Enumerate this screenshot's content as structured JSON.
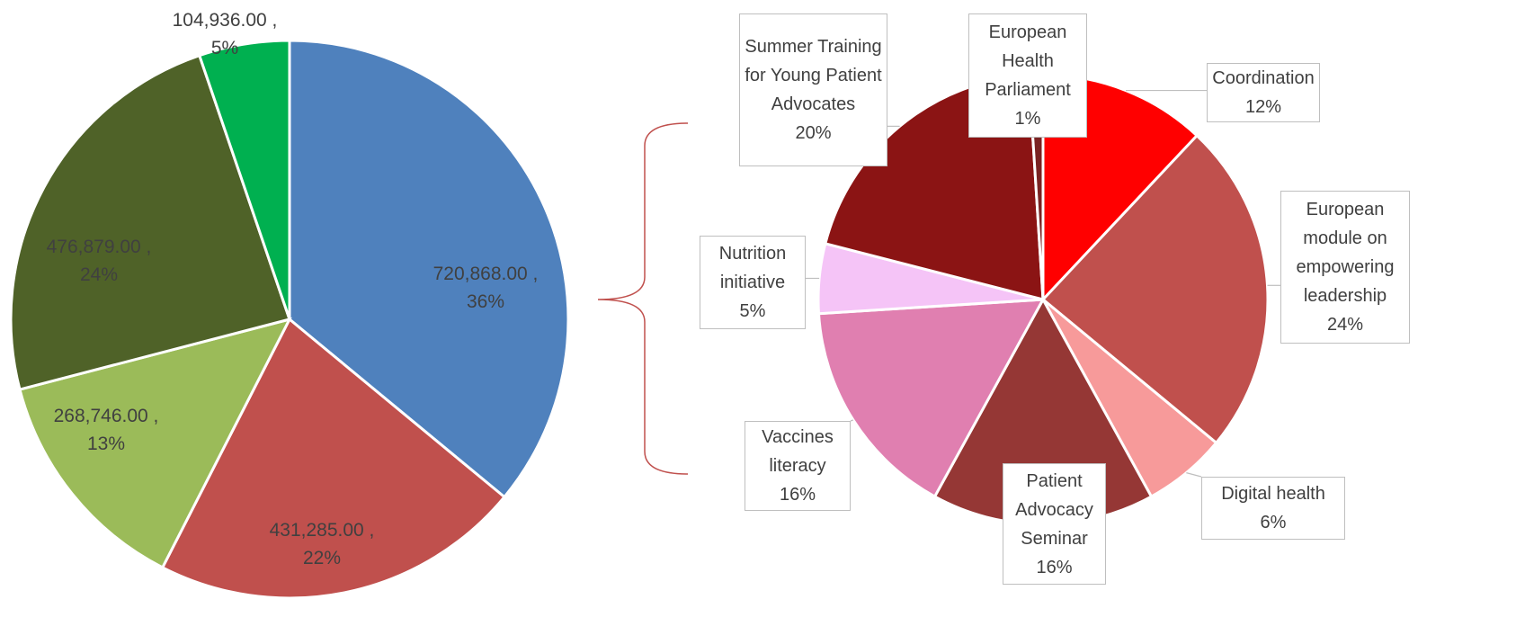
{
  "chart_data": [
    {
      "type": "pie",
      "values": [
        720868,
        431285,
        268746,
        476879,
        104936
      ],
      "value_labels": [
        "720,868.00 ,",
        "431,285.00 ,",
        "268,746.00 ,",
        "476,879.00 ,",
        "104,936.00 ,"
      ],
      "percents": [
        36,
        22,
        13,
        24,
        5
      ],
      "percent_labels": [
        "36%",
        "22%",
        "13%",
        "24%",
        "5%"
      ],
      "colors": [
        "#4f81bd",
        "#c0504d",
        "#9bbb59",
        "#4f6228",
        "#00b050"
      ]
    },
    {
      "type": "pie",
      "categories": [
        "Coordination",
        "European module on empowering leadership",
        "Digital health",
        "Patient Advocacy Seminar",
        "Vaccines literacy",
        "Nutrition initiative",
        "Summer Training for Young Patient Advocates",
        "European Health Parliament"
      ],
      "values": [
        12,
        24,
        6,
        16,
        16,
        5,
        20,
        1
      ],
      "value_labels": [
        "12%",
        "24%",
        "6%",
        "16%",
        "16%",
        "5%",
        "20%",
        "1%"
      ],
      "colors": [
        "#ff0000",
        "#c0504d",
        "#f79a9a",
        "#953735",
        "#e07fb0",
        "#f5c4f7",
        "#8b1414",
        "#7a2222"
      ]
    }
  ]
}
